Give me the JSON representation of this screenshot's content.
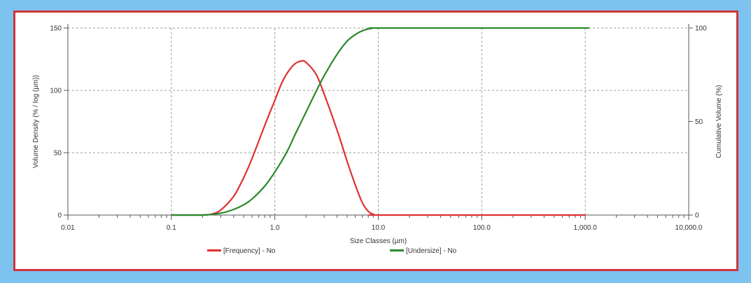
{
  "chart_data": {
    "type": "line",
    "xlabel": "Size Classes (µm)",
    "ylabel": "Volume Density (% / log (µm))",
    "y2label": "Cumulative Volume (%)",
    "x_scale": "log",
    "xlim": [
      0.01,
      10000
    ],
    "ylim": [
      0,
      150
    ],
    "y2lim": [
      0,
      100
    ],
    "grid": true,
    "legend_position": "bottom",
    "x_ticks": [
      {
        "value": 0.01,
        "label": "0.01"
      },
      {
        "value": 0.1,
        "label": "0.1"
      },
      {
        "value": 1,
        "label": "1.0"
      },
      {
        "value": 10,
        "label": "10.0"
      },
      {
        "value": 100,
        "label": "100.0"
      },
      {
        "value": 1000,
        "label": "1,000.0"
      },
      {
        "value": 10000,
        "label": "10,000.0"
      }
    ],
    "y_ticks": [
      {
        "value": 0,
        "label": "0"
      },
      {
        "value": 50,
        "label": "50"
      },
      {
        "value": 100,
        "label": "100"
      },
      {
        "value": 150,
        "label": "150"
      }
    ],
    "y2_ticks": [
      {
        "value": 0,
        "label": "0"
      },
      {
        "value": 50,
        "label": "50"
      },
      {
        "value": 100,
        "label": "100"
      }
    ],
    "series": [
      {
        "name": "[Frequency] - No",
        "axis": "left",
        "color": "#e03030",
        "x": [
          0.1,
          0.2,
          0.25,
          0.3,
          0.4,
          0.5,
          0.6,
          0.8,
          1.0,
          1.2,
          1.5,
          1.8,
          2.0,
          2.5,
          3.0,
          4.0,
          5.0,
          6.0,
          7.0,
          8.0,
          9.0,
          10.0,
          100,
          1000
        ],
        "y": [
          0,
          0,
          1,
          4,
          15,
          30,
          45,
          72,
          92,
          108,
          120,
          123.5,
          122.5,
          113,
          97,
          68,
          43,
          24,
          10,
          3,
          0.5,
          0,
          0,
          0
        ]
      },
      {
        "name": "[Undersize] - No",
        "axis": "right",
        "color": "#2a8a2a",
        "x": [
          0.1,
          0.2,
          0.3,
          0.4,
          0.5,
          0.6,
          0.8,
          1.0,
          1.3,
          1.6,
          2.0,
          2.5,
          3.0,
          4.0,
          5.0,
          6.0,
          7.0,
          8.0,
          9.0,
          10.0,
          100,
          1100
        ],
        "y": [
          0,
          0,
          1,
          3,
          5.5,
          8.5,
          15.5,
          23,
          33.5,
          44,
          55,
          66,
          74.5,
          86,
          93,
          96.5,
          98.5,
          99.5,
          100,
          100,
          100,
          100
        ]
      }
    ]
  }
}
